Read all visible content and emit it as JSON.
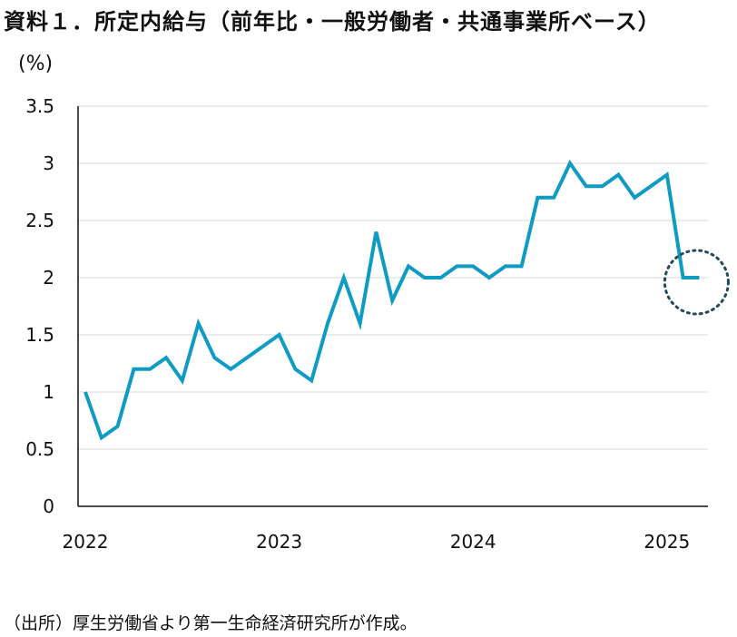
{
  "chart_data": {
    "type": "line",
    "title": "資料１．所定内給与（前年比・一般労働者・共通事業所ベース）",
    "ylabel": "(%)",
    "xlabel": "",
    "ylim": [
      0,
      3.5
    ],
    "yticks": [
      0,
      0.5,
      1,
      1.5,
      2,
      2.5,
      3,
      3.5
    ],
    "ytick_labels": [
      "0",
      "0.5",
      "1",
      "1.5",
      "2",
      "2.5",
      "3",
      "3.5"
    ],
    "x_tick_labels": [
      "2022",
      "2023",
      "2024",
      "2025"
    ],
    "x_tick_index": [
      0,
      12,
      24,
      36
    ],
    "grid": true,
    "series": [
      {
        "name": "所定内給与",
        "color": "#0f9bc3",
        "values": [
          1.0,
          0.6,
          0.7,
          1.2,
          1.2,
          1.3,
          1.1,
          1.6,
          1.3,
          1.2,
          1.3,
          1.4,
          1.5,
          1.2,
          1.1,
          1.6,
          2.0,
          1.6,
          2.4,
          1.8,
          2.1,
          2.0,
          2.0,
          2.1,
          2.1,
          2.0,
          2.1,
          2.1,
          2.7,
          2.7,
          3.0,
          2.8,
          2.8,
          2.9,
          2.7,
          2.8,
          2.9,
          2.0,
          2.0
        ]
      }
    ],
    "annotation": {
      "type": "dotted-circle",
      "index": 38,
      "value": 2.0,
      "color": "#1e4a5c"
    }
  },
  "source": "（出所）厚生労働省より第一生命経済研究所が作成。"
}
